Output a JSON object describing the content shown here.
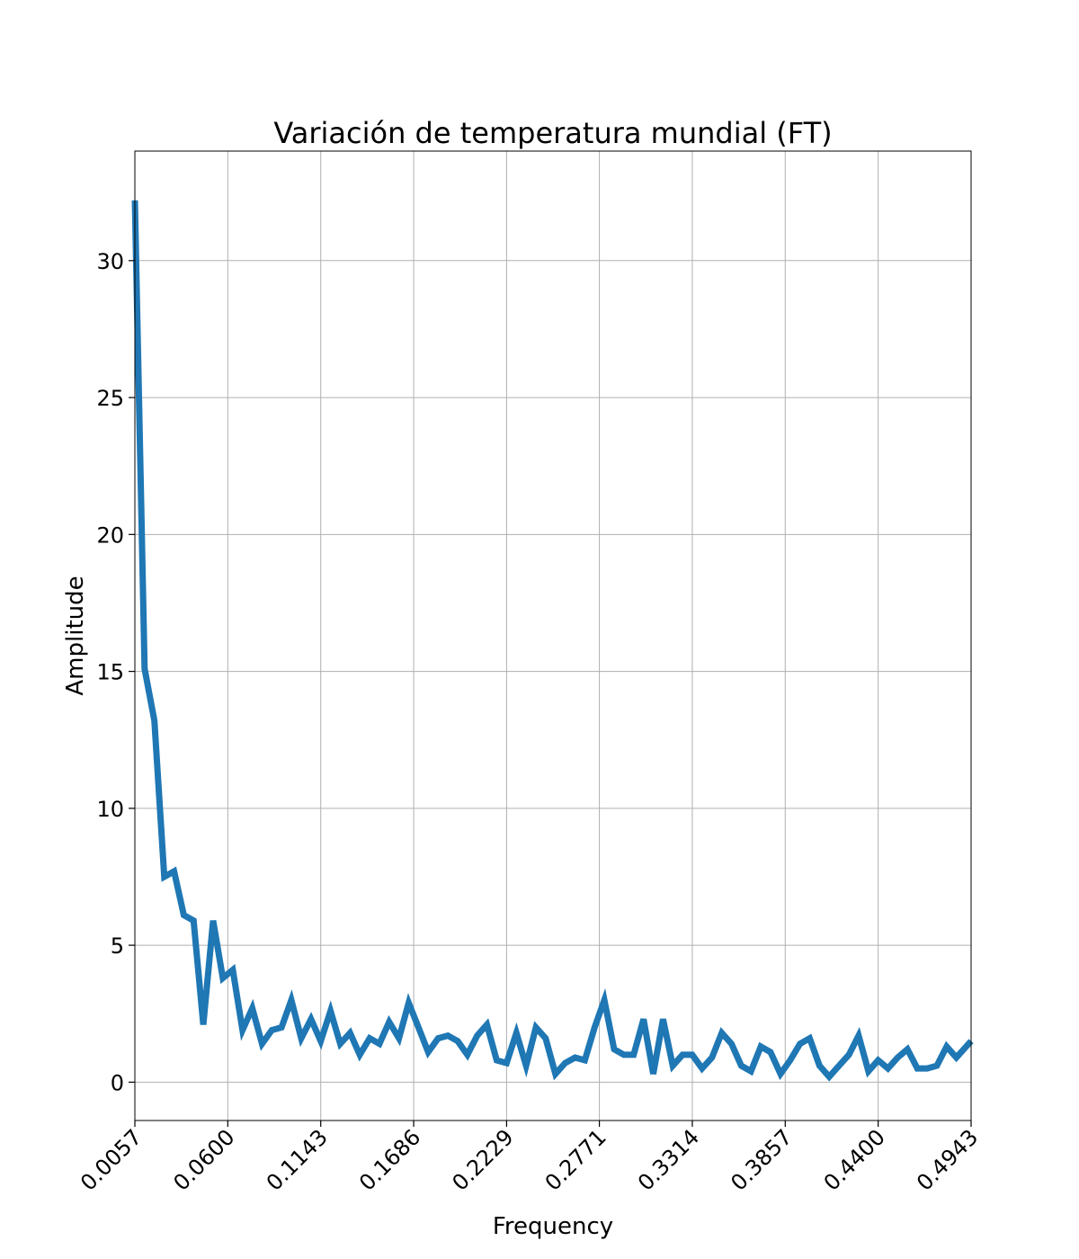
{
  "chart_data": {
    "type": "line",
    "title": "Variación de temperatura mundial (FT)",
    "xlabel": "Frequency",
    "ylabel": "Amplitude",
    "xlim": [
      0.0057,
      0.4943
    ],
    "ylim": [
      -1.4,
      34
    ],
    "xticks": [
      "0.0057",
      "0.0600",
      "0.1143",
      "0.1686",
      "0.2229",
      "0.2771",
      "0.3314",
      "0.3857",
      "0.4400",
      "0.4943"
    ],
    "xtick_values": [
      0.0057,
      0.06,
      0.1143,
      0.1686,
      0.2229,
      0.2771,
      0.3314,
      0.3857,
      0.44,
      0.4943
    ],
    "yticks": [
      "0",
      "5",
      "10",
      "15",
      "20",
      "25",
      "30"
    ],
    "ytick_values": [
      0,
      5,
      10,
      15,
      20,
      25,
      30
    ],
    "grid": true,
    "series": [
      {
        "color": "#1f77b4",
        "x": [
          0.0057,
          0.0114,
          0.0171,
          0.0229,
          0.0286,
          0.0343,
          0.04,
          0.0457,
          0.0514,
          0.0571,
          0.0629,
          0.0686,
          0.0743,
          0.08,
          0.0857,
          0.0914,
          0.0971,
          0.1029,
          0.1086,
          0.1143,
          0.12,
          0.1257,
          0.1314,
          0.1371,
          0.1429,
          0.1486,
          0.1543,
          0.16,
          0.1657,
          0.1714,
          0.1771,
          0.1829,
          0.1886,
          0.1943,
          0.2,
          0.2057,
          0.2114,
          0.2171,
          0.2229,
          0.2286,
          0.2343,
          0.24,
          0.2457,
          0.2514,
          0.2571,
          0.2629,
          0.2686,
          0.2743,
          0.28,
          0.2857,
          0.2914,
          0.2971,
          0.3029,
          0.3086,
          0.3143,
          0.32,
          0.3257,
          0.3314,
          0.3371,
          0.3429,
          0.3486,
          0.3543,
          0.36,
          0.3657,
          0.3714,
          0.3771,
          0.3829,
          0.3886,
          0.3943,
          0.4,
          0.4057,
          0.4114,
          0.4171,
          0.4229,
          0.4286,
          0.4343,
          0.44,
          0.4457,
          0.4514,
          0.4571,
          0.4629,
          0.4686,
          0.4743,
          0.48,
          0.4857,
          0.4914,
          0.4943
        ],
        "y": [
          32.2,
          15.1,
          13.2,
          7.5,
          7.7,
          6.1,
          5.9,
          2.1,
          5.9,
          3.8,
          4.1,
          1.9,
          2.7,
          1.4,
          1.9,
          2.0,
          3.0,
          1.6,
          2.3,
          1.5,
          2.6,
          1.4,
          1.8,
          1.0,
          1.6,
          1.4,
          2.2,
          1.6,
          2.9,
          2.0,
          1.1,
          1.6,
          1.7,
          1.5,
          1.0,
          1.7,
          2.1,
          0.8,
          0.7,
          1.8,
          0.6,
          2.0,
          1.6,
          0.3,
          0.7,
          0.9,
          0.8,
          2.0,
          3.0,
          1.2,
          1.0,
          1.0,
          2.3,
          0.3,
          2.3,
          0.6,
          1.0,
          1.0,
          0.5,
          0.9,
          1.8,
          1.4,
          0.6,
          0.4,
          1.3,
          1.1,
          0.3,
          0.8,
          1.4,
          1.6,
          0.6,
          0.2,
          0.6,
          1.0,
          1.7,
          0.4,
          0.8,
          0.5,
          0.9,
          1.2,
          0.5,
          0.5,
          0.6,
          1.3,
          0.9,
          1.3,
          1.5
        ]
      }
    ]
  }
}
